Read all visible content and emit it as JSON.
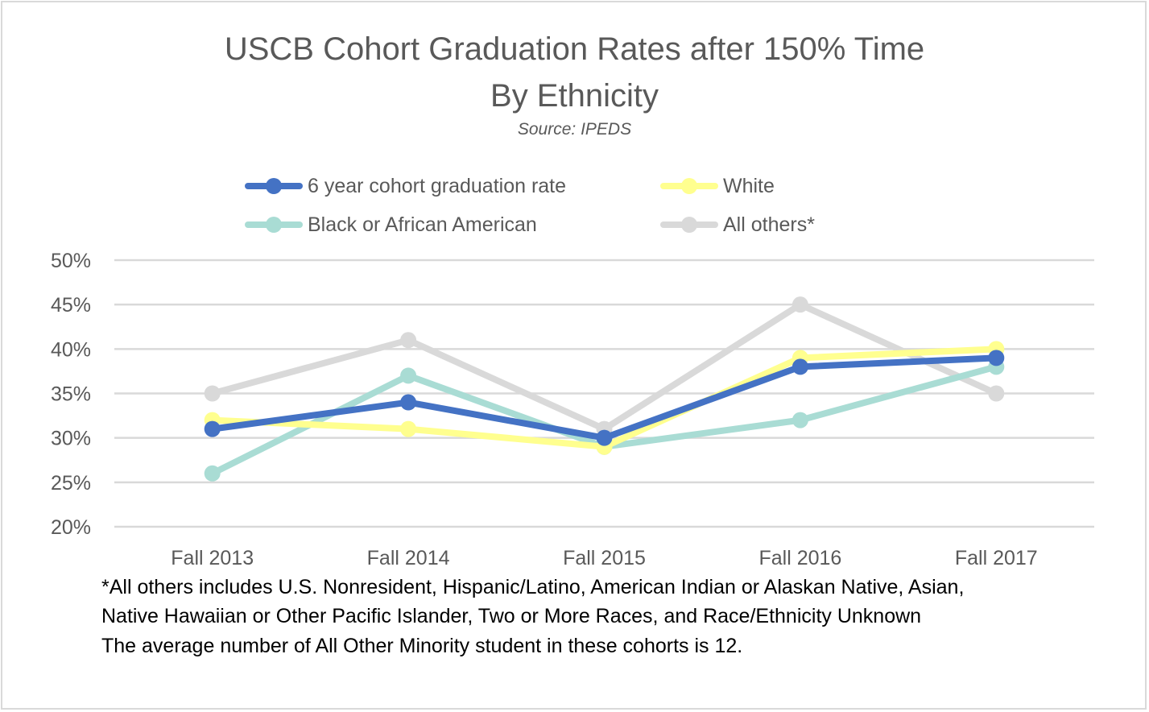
{
  "chart_data": {
    "type": "line",
    "title": "USCB Cohort Graduation Rates after 150% Time",
    "title_line2": "By Ethnicity",
    "subtitle": "Source: IPEDS",
    "categories": [
      "Fall 2013",
      "Fall 2014",
      "Fall 2015",
      "Fall 2016",
      "Fall 2017"
    ],
    "y_ticks": [
      "50%",
      "45%",
      "40%",
      "35%",
      "30%",
      "25%",
      "20%"
    ],
    "ylim": [
      20,
      50
    ],
    "y_unit": "%",
    "grid": true,
    "legend_position": "top",
    "series": [
      {
        "name": "6  year cohort graduation rate",
        "color": "#4472c4",
        "values": [
          31,
          34,
          30,
          38,
          39
        ]
      },
      {
        "name": "White",
        "color": "#ffff8f",
        "values": [
          32,
          31,
          29,
          39,
          40
        ]
      },
      {
        "name": "Black or African American",
        "color": "#a9dcd4",
        "values": [
          26,
          37,
          29,
          32,
          38
        ]
      },
      {
        "name": "All others*",
        "color": "#d9d9d9",
        "values": [
          35,
          41,
          31,
          45,
          35
        ]
      }
    ],
    "footnotes": [
      "*All others includes U.S. Nonresident, Hispanic/Latino, American Indian or Alaskan Native, Asian,",
      "Native Hawaiian or Other Pacific Islander, Two or More Races, and Race/Ethnicity Unknown",
      "The average number of All Other Minority student in these cohorts is 12."
    ]
  }
}
